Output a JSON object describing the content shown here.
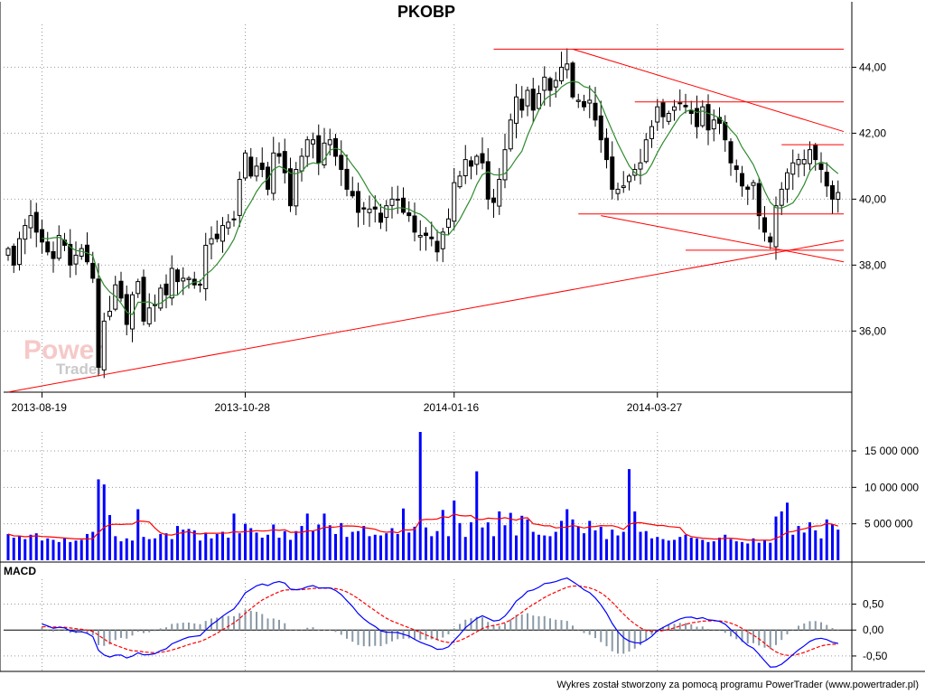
{
  "chart_data": {
    "type": "candlestick",
    "title": "PKOBP",
    "price": {
      "y_ticks": [
        36,
        38,
        40,
        42,
        44
      ],
      "y_tick_labels": [
        "36,00",
        "38,00",
        "40,00",
        "42,00",
        "44,00"
      ],
      "ylim": [
        34.2,
        45.3
      ],
      "x_tick_labels": [
        "2013-08-19",
        "2013-10-28",
        "2014-01-16",
        "2014-03-27"
      ],
      "close": [
        38.5,
        38.0,
        38.8,
        39.2,
        39.5,
        39.0,
        38.7,
        38.4,
        38.2,
        38.9,
        38.6,
        38.0,
        38.3,
        38.5,
        38.1,
        37.6,
        34.9,
        36.3,
        36.6,
        37.4,
        37.0,
        36.2,
        37.1,
        37.5,
        36.3,
        36.7,
        36.8,
        37.3,
        37.1,
        37.9,
        37.5,
        37.6,
        37.6,
        37.4,
        37.4,
        38.6,
        38.8,
        38.8,
        39.2,
        39.3,
        39.4,
        40.6,
        41.4,
        40.7,
        41.0,
        40.9,
        40.3,
        41.4,
        41.3,
        40.8,
        39.8,
        40.9,
        41.3,
        41.8,
        41.8,
        41.1,
        41.7,
        41.8,
        41.3,
        40.9,
        40.3,
        40.1,
        39.6,
        39.7,
        39.7,
        39.7,
        39.3,
        39.8,
        40.0,
        40.0,
        39.6,
        39.5,
        39.0,
        38.9,
        38.9,
        38.8,
        38.4,
        39.0,
        39.4,
        40.5,
        40.7,
        41.2,
        41.0,
        41.3,
        41.1,
        40.0,
        39.9,
        40.6,
        41.5,
        42.4,
        43.1,
        42.7,
        43.3,
        42.7,
        43.2,
        43.7,
        43.3,
        43.6,
        44.0,
        44.1,
        43.1,
        43.0,
        42.8,
        43.0,
        42.4,
        41.8,
        41.2,
        40.3,
        40.3,
        40.4,
        40.7,
        40.9,
        41.1,
        41.8,
        42.2,
        42.8,
        42.5,
        42.6,
        42.8,
        42.9,
        42.8,
        42.6,
        42.2,
        42.8,
        42.1,
        42.4,
        42.3,
        41.8,
        41.1,
        40.9,
        40.4,
        40.3,
        40.5,
        39.5,
        39.0,
        38.7,
        39.8,
        40.3,
        40.8,
        41.1,
        41.2,
        41.2,
        41.5,
        41.2,
        40.9,
        40.4,
        40.0,
        40.2
      ],
      "ma_period": 7,
      "ma_color": "#2e8b2e",
      "candle_up_color": "#ffffff",
      "candle_down_color": "#000000",
      "trendline_color": "#ff0000",
      "trendlines": [
        [
          0,
          34.15,
          148,
          38.75
        ],
        [
          86,
          44.55,
          148,
          44.55
        ],
        [
          100,
          44.55,
          148,
          42.05
        ],
        [
          111,
          42.95,
          148,
          42.95
        ],
        [
          137,
          41.65,
          148,
          41.65
        ],
        [
          101,
          39.55,
          148,
          39.55
        ],
        [
          105,
          39.5,
          148,
          38.1
        ],
        [
          120,
          38.45,
          148,
          38.45
        ]
      ]
    },
    "volume": {
      "y_ticks": [
        5000000,
        10000000,
        15000000
      ],
      "y_tick_labels": [
        "5 000 000",
        "10 000 000",
        "15 000 000"
      ],
      "ylim": [
        0,
        17600000
      ],
      "bar_color": "#0000ff",
      "ma_color": "#ff0000",
      "ma_period": 10,
      "values": [
        3600000,
        3100000,
        3300000,
        2900000,
        3500000,
        3700000,
        2700000,
        3000000,
        2800000,
        2500000,
        3000000,
        2500000,
        2700000,
        2800000,
        3600000,
        3900000,
        11100000,
        10400000,
        6200000,
        3300000,
        2600000,
        3000000,
        2700000,
        7000000,
        3200000,
        2900000,
        3000000,
        3600000,
        3700000,
        2900000,
        4700000,
        4200000,
        4300000,
        4100000,
        2700000,
        3800000,
        3000000,
        3600000,
        3900000,
        3100000,
        6400000,
        3700000,
        5000000,
        4400000,
        3800000,
        3100000,
        3500000,
        4900000,
        3100000,
        4000000,
        2800000,
        4000000,
        4700000,
        6400000,
        4000000,
        4900000,
        6400000,
        4800000,
        3600000,
        5100000,
        3200000,
        3900000,
        4000000,
        4700000,
        3300000,
        3500000,
        3400000,
        3700000,
        4400000,
        3600000,
        7100000,
        3800000,
        4600000,
        17600000,
        4500000,
        3300000,
        4000000,
        6900000,
        3300000,
        8200000,
        5100000,
        3200000,
        5200000,
        12200000,
        4500000,
        5200000,
        3300000,
        6700000,
        4800000,
        6500000,
        3400000,
        6100000,
        5600000,
        3900000,
        3500000,
        3400000,
        3300000,
        3900000,
        5400000,
        7000000,
        5600000,
        4600000,
        3700000,
        5400000,
        4100000,
        4600000,
        2900000,
        4200000,
        3400000,
        3900000,
        12500000,
        6700000,
        3900000,
        4000000,
        3000000,
        3200000,
        2900000,
        2700000,
        2800000,
        3200000,
        3500000,
        3100000,
        3000000,
        2800000,
        2500000,
        2600000,
        3100000,
        3500000,
        2900000,
        2600000,
        2500000,
        2300000,
        3000000,
        2400000,
        2700000,
        2400000,
        6000000,
        6700000,
        7900000,
        3500000,
        4700000,
        3800000,
        5200000,
        4100000,
        3000000,
        5600000,
        4900000,
        4200000
      ]
    },
    "macd": {
      "label": "MACD",
      "y_ticks": [
        0.5,
        0,
        -0.5
      ],
      "y_tick_labels": [
        "0,50",
        "0,00",
        "-0,50"
      ],
      "ylim": [
        -0.78,
        0.98
      ],
      "macd_color": "#0000ff",
      "signal_color": "#ff0000",
      "hist_color": "#8a9aa6",
      "fast": 12,
      "slow": 26,
      "signal": 9
    },
    "grid": true
  },
  "watermark": {
    "power": "Power",
    "trader": "Trader"
  },
  "footer": "Wykres został stworzony za pomocą programu PowerTrader (www.powertrader.pl)"
}
